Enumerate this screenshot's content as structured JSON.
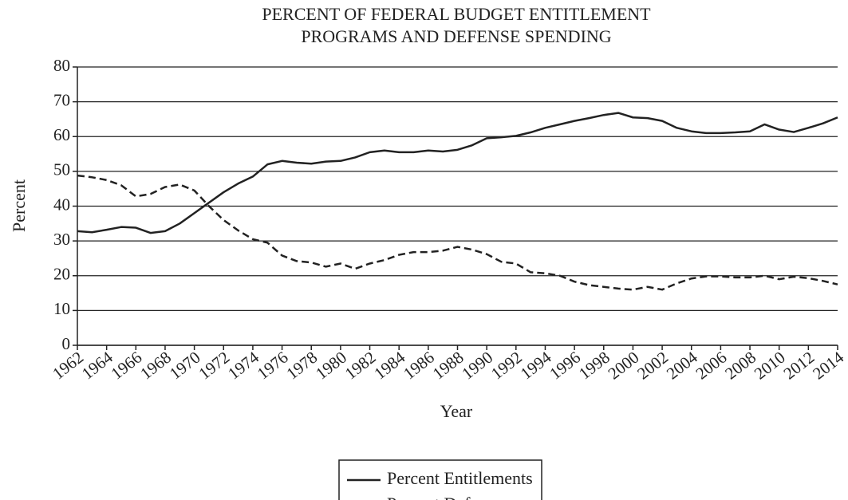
{
  "chart_data": {
    "type": "line",
    "title": [
      "PERCENT OF FEDERAL BUDGET ENTITLEMENT",
      "PROGRAMS AND DEFENSE SPENDING"
    ],
    "x_label": "Year",
    "y_label": "Percent",
    "x": [
      1962,
      1963,
      1964,
      1965,
      1966,
      1967,
      1968,
      1969,
      1970,
      1971,
      1972,
      1973,
      1974,
      1975,
      1976,
      1977,
      1978,
      1979,
      1980,
      1981,
      1982,
      1983,
      1984,
      1985,
      1986,
      1987,
      1988,
      1989,
      1990,
      1991,
      1992,
      1993,
      1994,
      1995,
      1996,
      1997,
      1998,
      1999,
      2000,
      2001,
      2002,
      2003,
      2004,
      2005,
      2006,
      2007,
      2008,
      2009,
      2010,
      2011,
      2012,
      2013,
      2014
    ],
    "series": [
      {
        "name": "Percent Entitlements",
        "color": "#222222",
        "line_style": "solid",
        "values": [
          32.8,
          32.5,
          33.2,
          34.0,
          33.8,
          32.3,
          32.8,
          35.0,
          38.0,
          41.0,
          44.0,
          46.5,
          48.5,
          52.0,
          53.0,
          52.5,
          52.2,
          52.8,
          53.0,
          54.0,
          55.5,
          56.0,
          55.5,
          55.5,
          56.0,
          55.7,
          56.2,
          57.5,
          59.5,
          59.8,
          60.2,
          61.2,
          62.5,
          63.5,
          64.5,
          65.3,
          66.2,
          66.8,
          65.5,
          65.3,
          64.5,
          62.5,
          61.5,
          61.0,
          61.0,
          61.2,
          61.5,
          63.5,
          62.0,
          61.3,
          62.5,
          63.8,
          65.5
        ]
      },
      {
        "name": "Percent Defense",
        "color": "#222222",
        "line_style": "dashed",
        "values": [
          48.8,
          48.3,
          47.5,
          46.0,
          42.8,
          43.5,
          45.5,
          46.2,
          44.5,
          40.0,
          36.0,
          33.0,
          30.5,
          29.5,
          25.8,
          24.2,
          23.8,
          22.6,
          23.5,
          22.0,
          23.5,
          24.5,
          26.0,
          26.8,
          26.8,
          27.2,
          28.3,
          27.5,
          26.2,
          24.0,
          23.5,
          21.0,
          20.7,
          20.0,
          18.3,
          17.3,
          16.8,
          16.3,
          16.0,
          16.8,
          16.0,
          17.8,
          19.2,
          19.8,
          19.8,
          19.5,
          19.5,
          20.0,
          19.0,
          19.7,
          19.3,
          18.5,
          17.5
        ]
      }
    ],
    "xlim": [
      1962,
      2014
    ],
    "xticks": [
      1962,
      1964,
      1966,
      1968,
      1970,
      1972,
      1974,
      1976,
      1978,
      1980,
      1982,
      1984,
      1986,
      1988,
      1990,
      1992,
      1994,
      1996,
      1998,
      2000,
      2002,
      2004,
      2006,
      2008,
      2010,
      2012,
      2014
    ],
    "ylim": [
      0,
      80
    ],
    "yticks": [
      0,
      10,
      20,
      30,
      40,
      50,
      60,
      70,
      80
    ],
    "grid": true,
    "legend": "bottom"
  }
}
